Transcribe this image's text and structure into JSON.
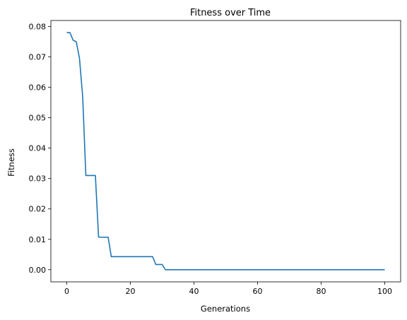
{
  "chart_data": {
    "type": "line",
    "title": "Fitness over Time",
    "xlabel": "Generations",
    "ylabel": "Fitness",
    "xlim": [
      -5,
      105
    ],
    "ylim": [
      -0.004,
      0.082
    ],
    "xticks": [
      0,
      20,
      40,
      60,
      80,
      100
    ],
    "xtick_labels": [
      "0",
      "20",
      "40",
      "60",
      "80",
      "100"
    ],
    "yticks": [
      0.0,
      0.01,
      0.02,
      0.03,
      0.04,
      0.05,
      0.06,
      0.07,
      0.08
    ],
    "ytick_labels": [
      "0.00",
      "0.01",
      "0.02",
      "0.03",
      "0.04",
      "0.05",
      "0.06",
      "0.07",
      "0.08"
    ],
    "grid": false,
    "series": [
      {
        "color": "#1f77b4",
        "x": [
          0,
          1,
          2,
          3,
          4,
          5,
          6,
          7,
          8,
          9,
          10,
          11,
          12,
          13,
          14,
          15,
          20,
          25,
          27,
          28,
          29,
          30,
          31,
          32,
          40,
          50,
          60,
          70,
          80,
          90,
          100
        ],
        "y": [
          0.078,
          0.078,
          0.0755,
          0.075,
          0.0695,
          0.057,
          0.031,
          0.031,
          0.031,
          0.031,
          0.0107,
          0.0107,
          0.0107,
          0.0107,
          0.0043,
          0.0043,
          0.0043,
          0.0043,
          0.0043,
          0.0017,
          0.0017,
          0.0017,
          0.0,
          0.0,
          0.0,
          0.0,
          0.0,
          0.0,
          0.0,
          0.0,
          0.0
        ]
      }
    ]
  }
}
